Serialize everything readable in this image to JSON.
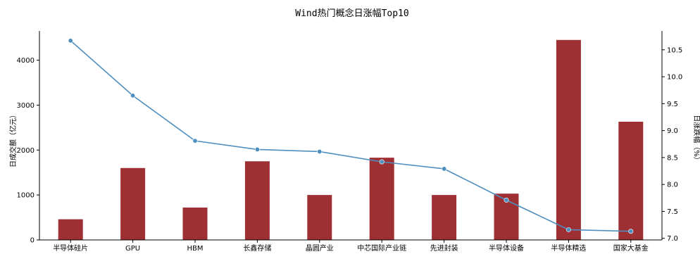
{
  "chart_data": {
    "type": "bar",
    "title": "Wind热门概念日涨幅Top10",
    "categories": [
      "半导体硅片",
      "GPU",
      "HBM",
      "长鑫存储",
      "晶圆产业",
      "中芯国际产业链",
      "先进封装",
      "半导体设备",
      "半导体精选",
      "国家大基金"
    ],
    "series": [
      {
        "name": "日成交额（亿元）",
        "type": "bar",
        "axis": "left",
        "color": "#9e2f33",
        "values": [
          460,
          1600,
          720,
          1750,
          1000,
          1830,
          1000,
          1030,
          4450,
          2630
        ]
      },
      {
        "name": "日涨跌幅（%）",
        "type": "line",
        "axis": "right",
        "color": "#4f8fbf",
        "values": [
          10.67,
          9.65,
          8.81,
          8.65,
          8.61,
          8.42,
          8.29,
          7.71,
          7.16,
          7.13
        ]
      }
    ],
    "ylabel_left": "日成交额（亿元）",
    "ylabel_right": "日涨跌幅（%）",
    "ylim_left": [
      0,
      4650
    ],
    "ylim_right": [
      6.97,
      10.85
    ],
    "yticks_left": [
      "0",
      "1000",
      "2000",
      "3000",
      "4000"
    ],
    "yticks_right": [
      "7.0",
      "7.5",
      "8.0",
      "8.5",
      "9.0",
      "9.5",
      "10.0",
      "10.5"
    ],
    "grid": false,
    "legend": "none"
  }
}
